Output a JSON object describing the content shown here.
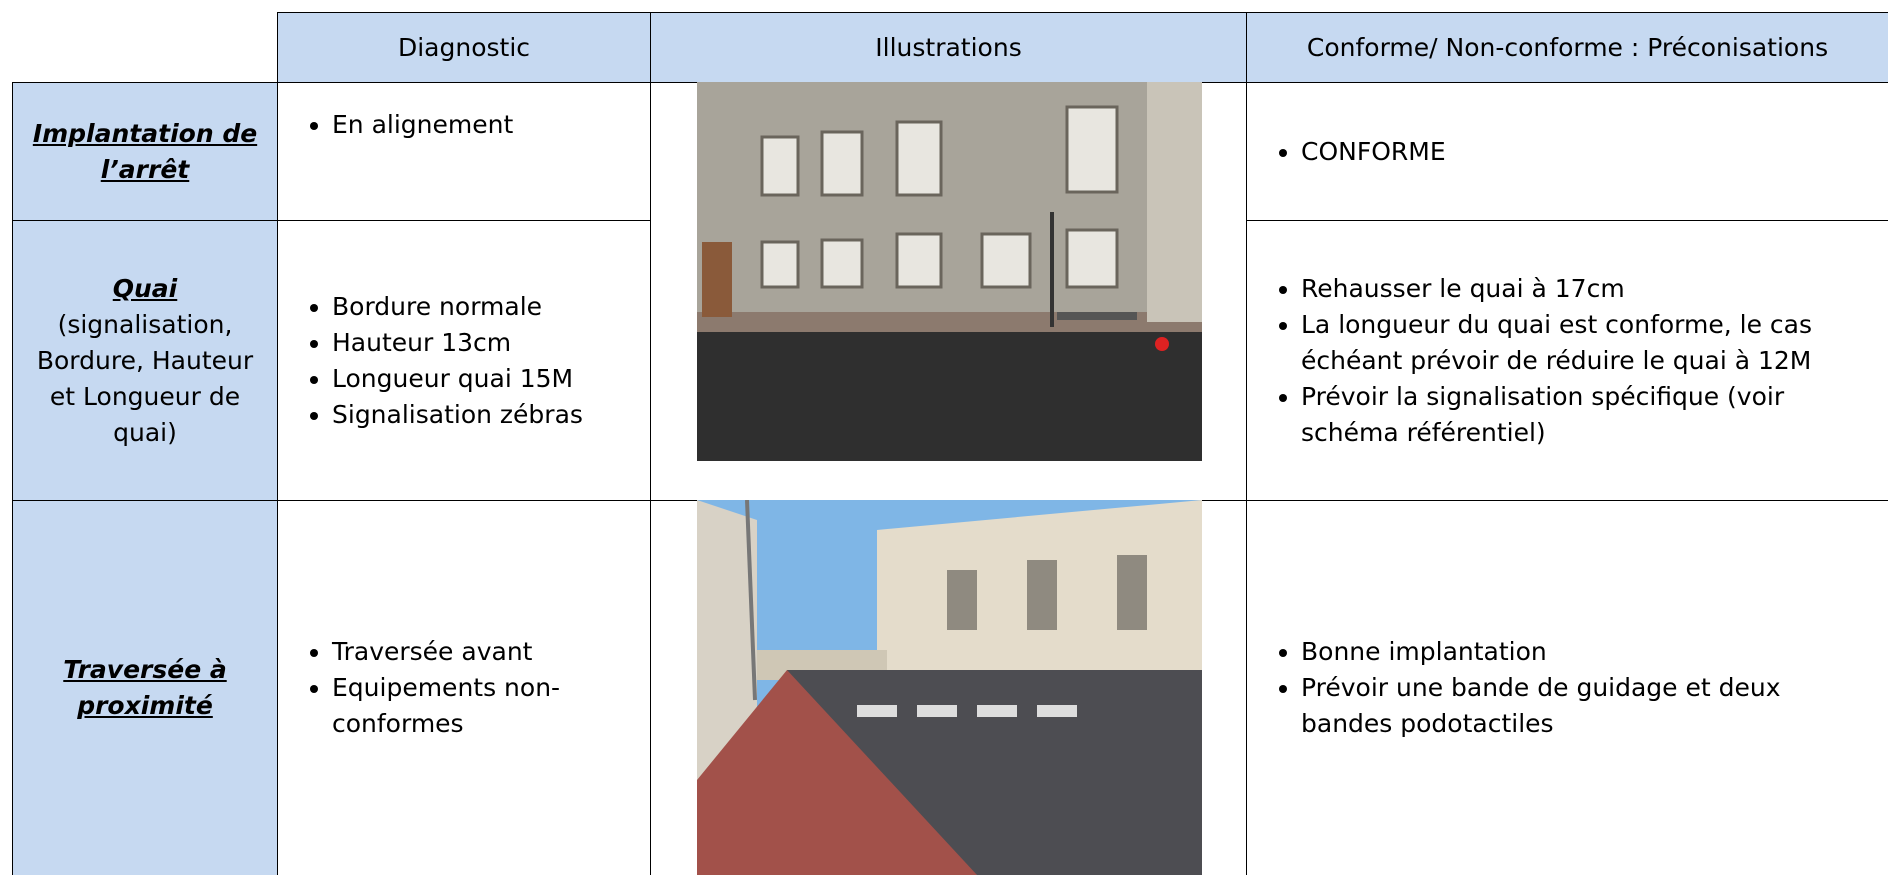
{
  "header": {
    "columns": [
      "Diagnostic",
      "Illustrations",
      "Conforme/ Non-conforme : Préconisations"
    ]
  },
  "rows": [
    {
      "label": "Implantation de l’arrêt",
      "diagnostic": [
        "En alignement"
      ],
      "recommendations": [
        "CONFORME"
      ]
    },
    {
      "label": "Quai",
      "sublabel": "(signalisation, Bordure, Hauteur et Longueur de quai)",
      "diagnostic": [
        "Bordure normale",
        "Hauteur 13cm",
        "Longueur quai 15M",
        "Signalisation zébras"
      ],
      "recommendations": [
        "Rehausser le quai à 17cm",
        "La longueur du quai est conforme, le cas échéant prévoir de réduire le quai à 12M",
        "Prévoir la signalisation spécifique (voir schéma référentiel)"
      ]
    },
    {
      "label": "Traversée à proximité",
      "diagnostic": [
        "Traversée avant",
        "Equipements non-conformes"
      ],
      "recommendations": [
        "Bonne implantation",
        " Prévoir une bande de guidage et deux bandes podotactiles"
      ]
    }
  ]
}
